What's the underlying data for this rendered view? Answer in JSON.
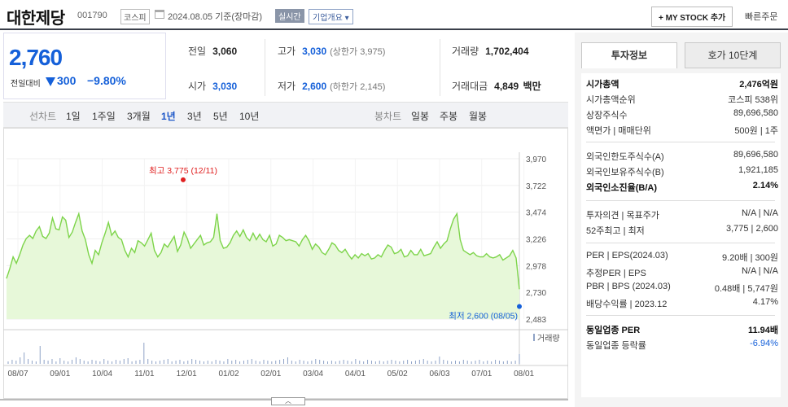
{
  "header": {
    "company": "대한제당",
    "code": "001790",
    "market": "코스피",
    "date": "2024.08.05",
    "basis": "기준(장마감)",
    "realtime": "실시간",
    "overview": "기업개요",
    "my_stock": "+ MY STOCK 추가",
    "quick_order": "빠른주문"
  },
  "price": {
    "current": "2,760",
    "change_label": "전일대비",
    "change": "300",
    "rate": "−9.80%",
    "color": "#1560d9"
  },
  "stats": {
    "prev_label": "전일",
    "prev": "3,060",
    "high_label": "고가",
    "high": "3,030",
    "high_sub": "(상한가 3,975)",
    "vol_label": "거래량",
    "vol": "1,702,404",
    "open_label": "시가",
    "open": "3,030",
    "low_label": "저가",
    "low": "2,600",
    "low_sub": "(하한가 2,145)",
    "amt_label": "거래대금",
    "amt": "4,849",
    "amt_unit": "백만"
  },
  "periods": {
    "line_caption": "선차트",
    "line": [
      "1일",
      "1주일",
      "3개월",
      "1년",
      "3년",
      "5년",
      "10년"
    ],
    "active": "1년",
    "candle_caption": "봉차트",
    "candle": [
      "일봉",
      "주봉",
      "월봉"
    ]
  },
  "chart_data": {
    "type": "area",
    "series": [
      {
        "values": [
          2860,
          2950,
          3060,
          3000,
          3080,
          3170,
          3230,
          3260,
          3230,
          3300,
          3340,
          3250,
          3230,
          3280,
          3420,
          3320,
          3310,
          3430,
          3400,
          3240,
          3290,
          3380,
          3460,
          3300,
          3220,
          3080,
          3000,
          3120,
          3080,
          3190,
          3280,
          3380,
          3260,
          3300,
          3240,
          3220,
          3120,
          3060,
          3140,
          3100,
          3210,
          3190,
          3160,
          3220,
          3280,
          3120,
          3060,
          3100,
          3180,
          3150,
          3200,
          3250,
          3110,
          3170,
          3290,
          3230,
          3140,
          3180,
          3220,
          3260,
          3170,
          3190,
          3200,
          3240,
          3460,
          3210,
          3140,
          3150,
          3190,
          3260,
          3300,
          3250,
          3310,
          3240,
          3210,
          3280,
          3220,
          3270,
          3220,
          3200,
          3260,
          3160,
          3180,
          3260,
          3240,
          3210,
          3220,
          3210,
          3200,
          3160,
          3220,
          3260,
          3210,
          3130,
          3180,
          3150,
          3100,
          3080,
          3130,
          3190,
          3170,
          3120,
          3100,
          3130,
          3080,
          3040,
          3080,
          3050,
          3090,
          3070,
          3090,
          3040,
          3050,
          3080,
          3060,
          3120,
          3170,
          3150,
          3090,
          3100,
          3130,
          3060,
          3070,
          3120,
          3080,
          3080,
          3130,
          3070,
          3080,
          3090,
          3150,
          3200,
          3140,
          3180,
          3210,
          3320,
          3410,
          3460,
          3220,
          3120,
          3100,
          3080,
          3100,
          3070,
          3060,
          3060,
          3090,
          3060,
          3050,
          3060,
          3080,
          3030,
          3050,
          3070,
          3120,
          3050,
          2760
        ]
      }
    ],
    "x_ticks": [
      "08/07",
      "09/01",
      "10/04",
      "11/01",
      "12/01",
      "01/02",
      "02/01",
      "03/04",
      "04/01",
      "05/02",
      "06/03",
      "07/01",
      "08/01"
    ],
    "y_ticks": [
      "3,970",
      "3,722",
      "3,474",
      "3,226",
      "2,978",
      "2,730",
      "2,483"
    ],
    "ylim": [
      2483,
      3970
    ],
    "high_annotation": "최고 3,775 (12/11)",
    "low_annotation": "최저 2,600 (08/05)",
    "volume_label": "거래량",
    "line_color": "#7dd44a",
    "fill_color": "#e7f8d9"
  },
  "panel": {
    "tabs": [
      "투자정보",
      "호가 10단계"
    ],
    "rows": [
      {
        "k": "시가총액",
        "v": "2,476억원",
        "bold": true
      },
      {
        "k": "시가총액순위",
        "v": "코스피 538위"
      },
      {
        "k": "상장주식수",
        "v": "89,696,580"
      },
      {
        "k": "액면가 | 매매단위",
        "v": "500원 | 1주"
      },
      {
        "k": "외국인한도주식수(A)",
        "v": "89,696,580"
      },
      {
        "k": "외국인보유주식수(B)",
        "v": "1,921,185"
      },
      {
        "k": "외국인소진율(B/A)",
        "v": "2.14%",
        "bold": true
      },
      {
        "k": "투자의견 | 목표주가",
        "v": "N/A | N/A"
      },
      {
        "k": "52주최고 | 최저",
        "v": "3,775 | 2,600"
      },
      {
        "k": "PER | EPS(2024.03)",
        "v": "9.20배 | 300원"
      },
      {
        "k": "추정PER | EPS",
        "v": "N/A | N/A"
      },
      {
        "k": "PBR | BPS (2024.03)",
        "v": "0.48배 | 5,747원"
      },
      {
        "k": "배당수익률 | 2023.12",
        "v": "4.17%"
      },
      {
        "k": "동일업종 PER",
        "v": "11.94배",
        "bold": true
      },
      {
        "k": "동일업종 등락률",
        "v": "-6.94%",
        "red": true
      }
    ]
  }
}
